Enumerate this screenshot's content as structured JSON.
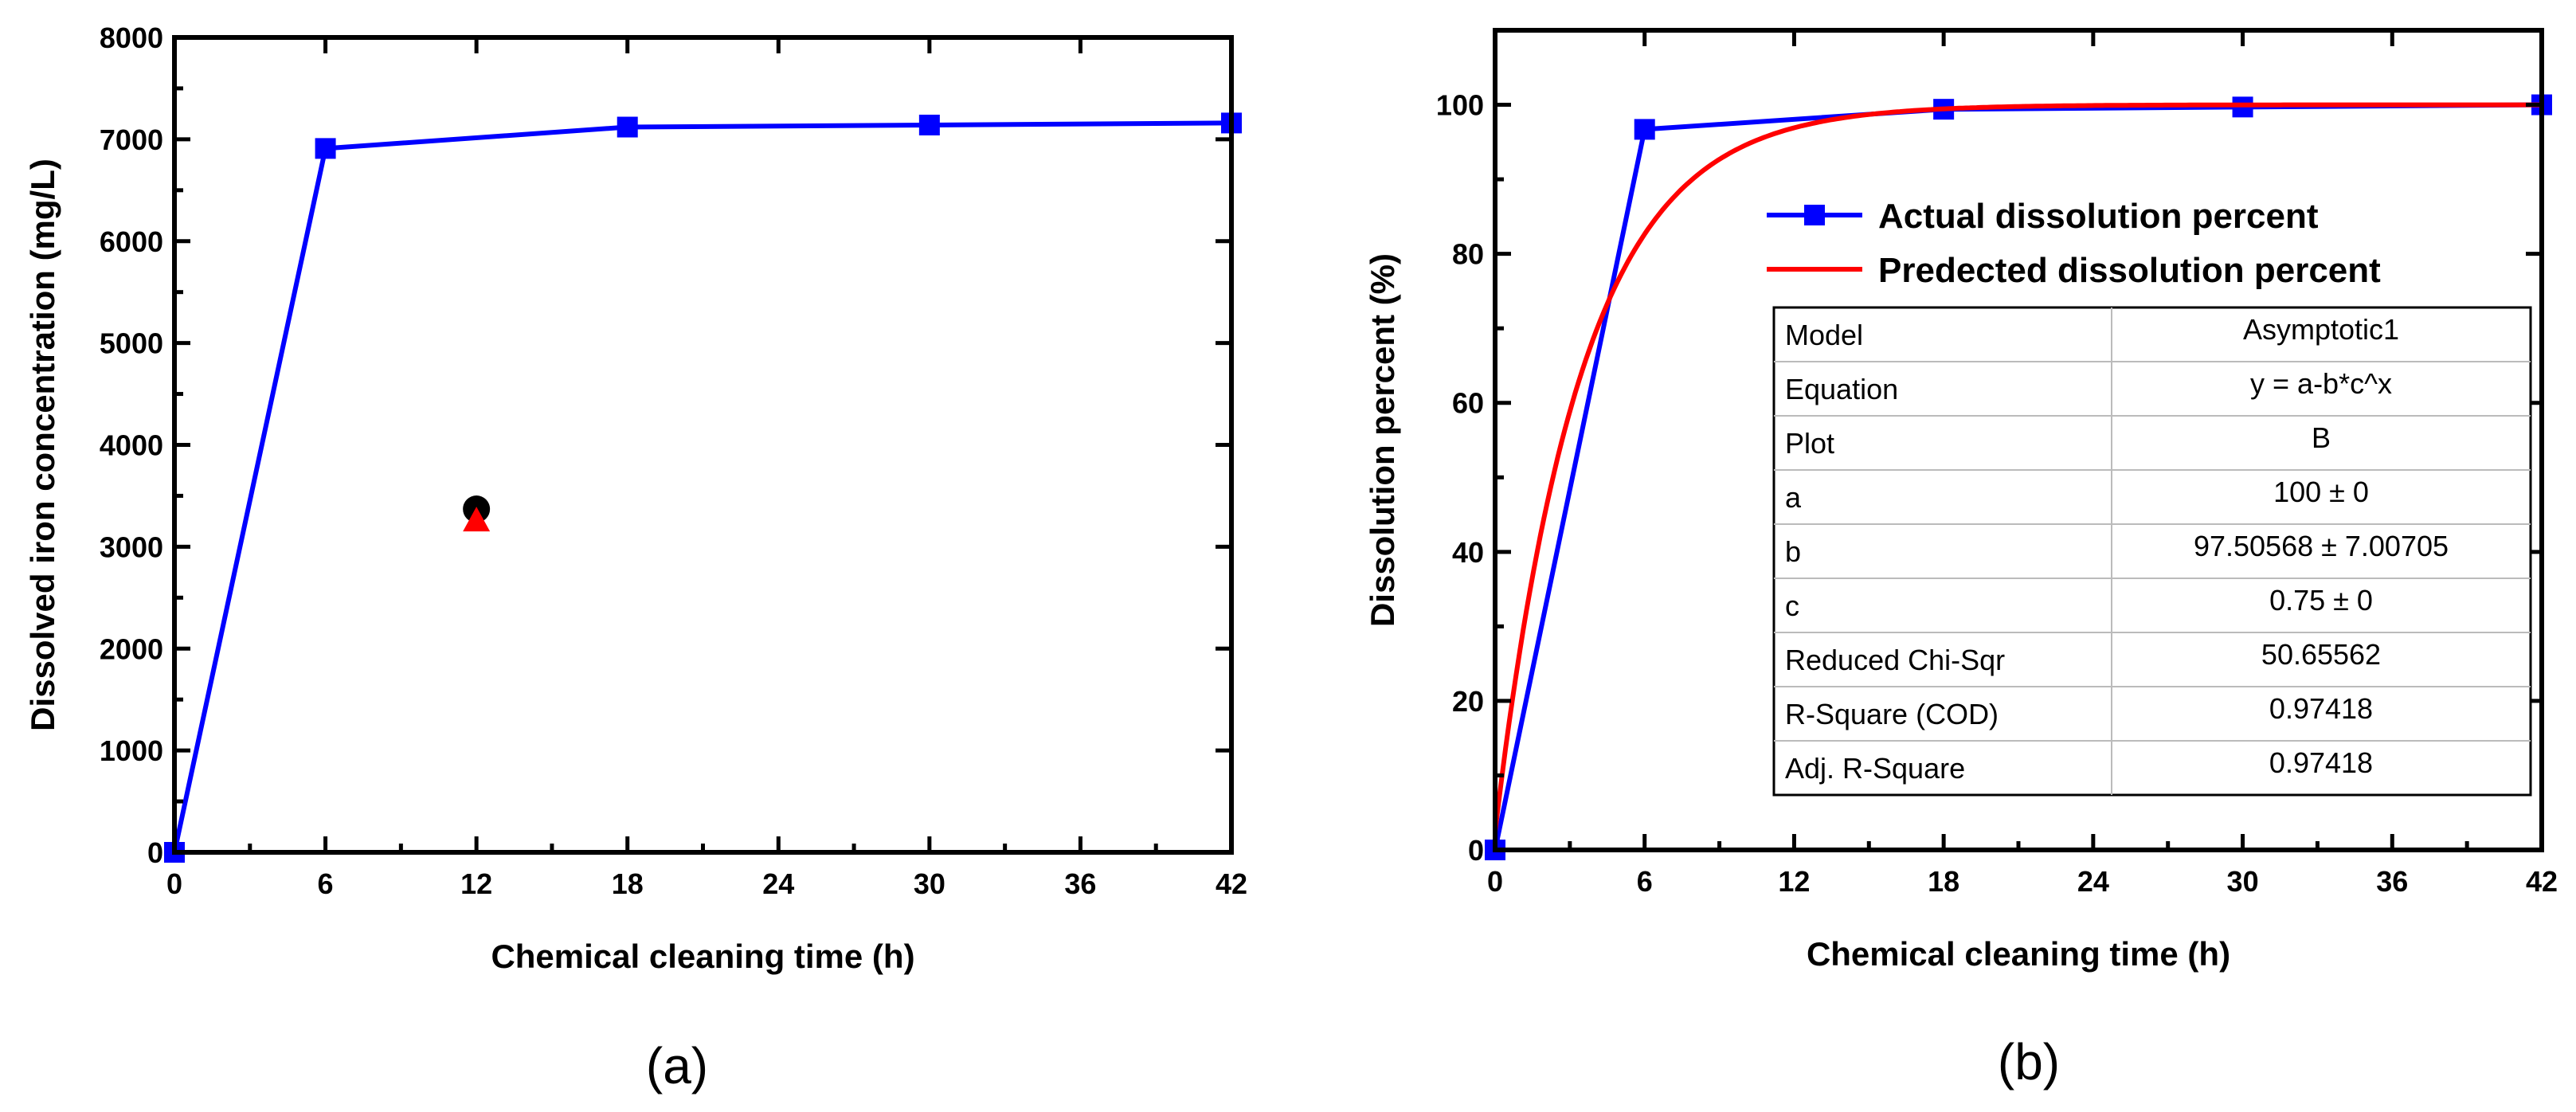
{
  "chart_data": [
    {
      "type": "line",
      "panel_label": "(a)",
      "xlabel": "Chemical cleaning time (h)",
      "ylabel": "Dissolved iron concentration (mg/L)",
      "xlim": [
        0,
        42
      ],
      "ylim": [
        0,
        8000
      ],
      "xticks": [
        0,
        6,
        12,
        18,
        24,
        30,
        36,
        42
      ],
      "yticks": [
        0,
        1000,
        2000,
        3000,
        4000,
        5000,
        6000,
        7000,
        8000
      ],
      "grid": false,
      "series": [
        {
          "x": [
            0,
            6,
            18,
            30,
            42
          ],
          "y": [
            0,
            6910,
            7120,
            7140,
            7160
          ],
          "color": "#0000ff",
          "marker": "square",
          "line": true
        },
        {
          "x": [
            12
          ],
          "y": [
            3370
          ],
          "color": "#000000",
          "marker": "circle",
          "line": false
        },
        {
          "x": [
            12
          ],
          "y": [
            3260
          ],
          "color": "#ff0000",
          "marker": "triangle",
          "line": false
        }
      ]
    },
    {
      "type": "line",
      "panel_label": "(b)",
      "xlabel": "Chemical cleaning time (h)",
      "ylabel": "Dissolution percent (%)",
      "xlim": [
        0,
        42
      ],
      "ylim": [
        0,
        110
      ],
      "xticks": [
        0,
        6,
        12,
        18,
        24,
        30,
        36,
        42
      ],
      "yticks": [
        0,
        20,
        40,
        60,
        80,
        100
      ],
      "grid": false,
      "legend_position": "upper-right",
      "series": [
        {
          "name": "Actual dissolution percent",
          "x": [
            0,
            6,
            18,
            30,
            42
          ],
          "y": [
            0,
            96.7,
            99.4,
            99.7,
            100
          ],
          "color": "#0000ff",
          "marker": "square",
          "line": true
        },
        {
          "name": "Predected dissolution percent",
          "model": {
            "a": 100,
            "b": 97.50568,
            "c": 0.75
          },
          "color": "#ff0000",
          "marker": "none",
          "line": true
        }
      ],
      "fit_table": [
        [
          "Model",
          "Asymptotic1"
        ],
        [
          "Equation",
          "y = a-b*c^x"
        ],
        [
          "Plot",
          "B"
        ],
        [
          "a",
          "100 ± 0"
        ],
        [
          "b",
          "97.50568 ± 7.00705"
        ],
        [
          "c",
          "0.75 ± 0"
        ],
        [
          "Reduced Chi-Sqr",
          "50.65562"
        ],
        [
          "R-Square (COD)",
          "0.97418"
        ],
        [
          "Adj. R-Square",
          "0.97418"
        ]
      ]
    }
  ]
}
